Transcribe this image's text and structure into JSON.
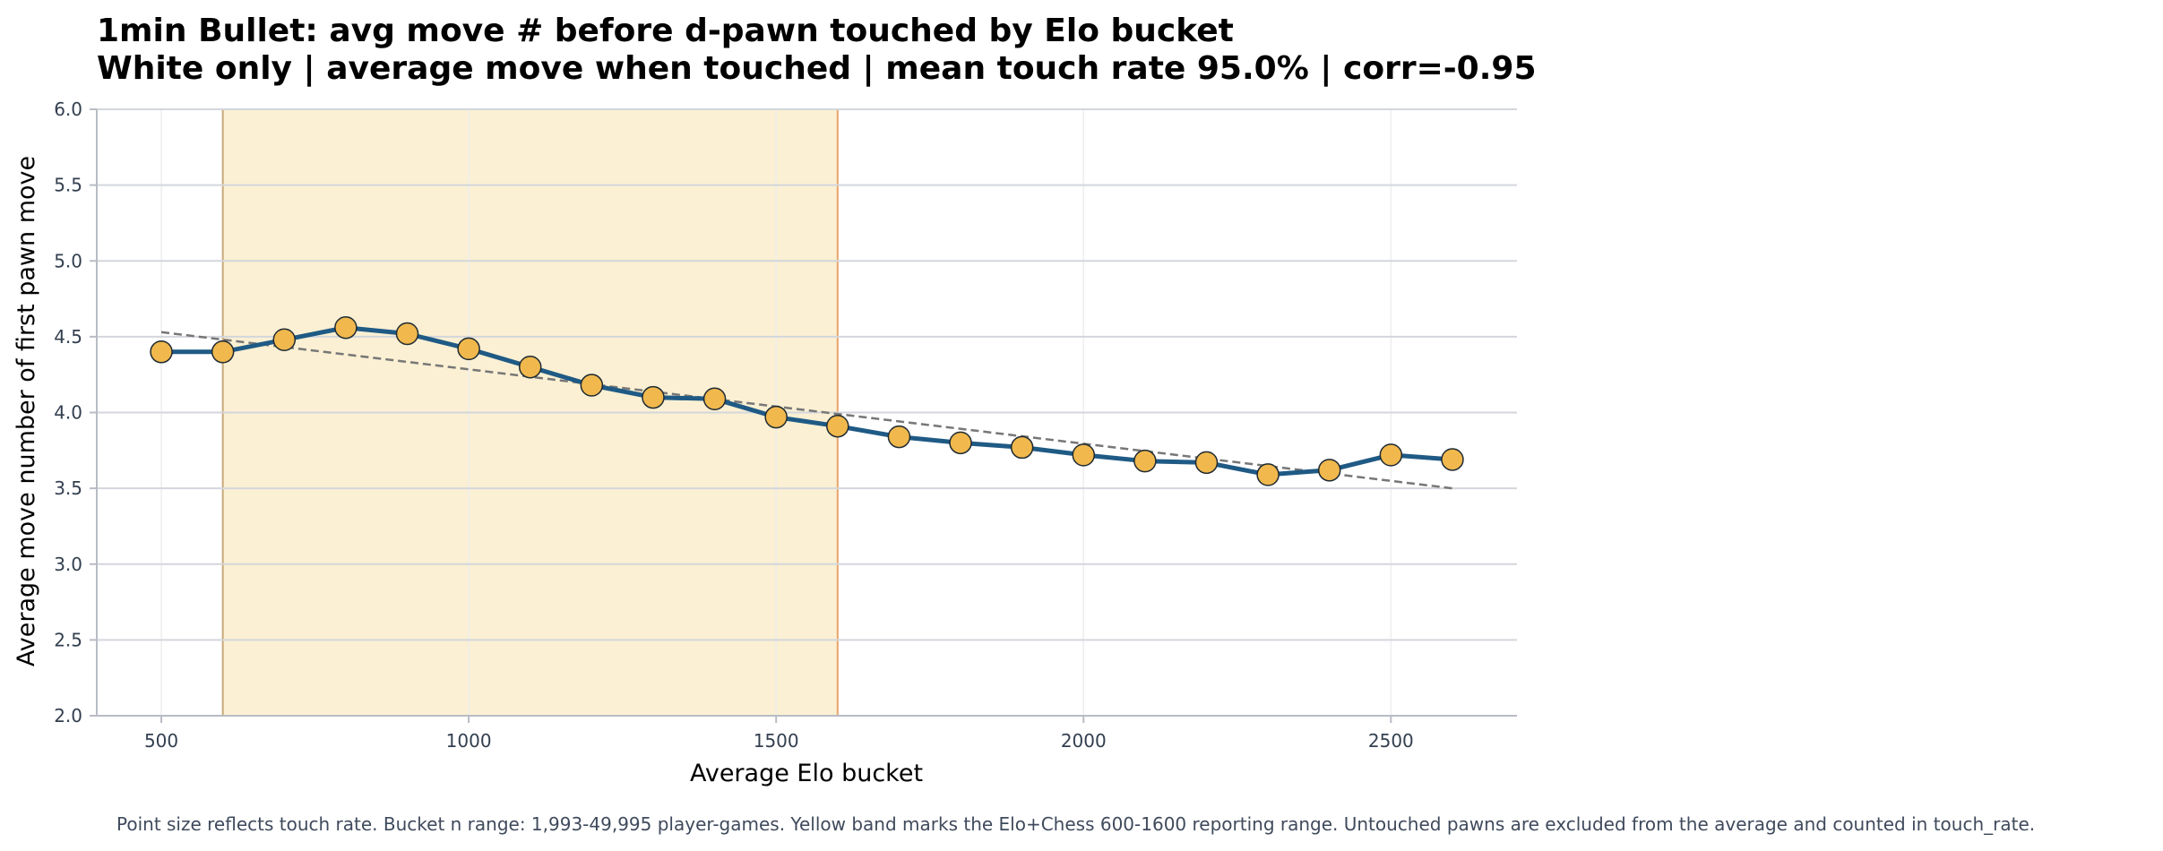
{
  "chart_data": {
    "type": "line",
    "title": "1min Bullet: avg move # before d-pawn touched by Elo bucket",
    "subtitle": "White only | average move when touched | mean touch rate 95.0% | corr=-0.95",
    "xlabel": "Average Elo bucket",
    "ylabel": "Average move number of first pawn move",
    "xlim": [
      395,
      2705
    ],
    "ylim": [
      2.0,
      6.0
    ],
    "x_ticks": [
      500,
      1000,
      1500,
      2000,
      2500
    ],
    "y_ticks": [
      2.0,
      2.5,
      3.0,
      3.5,
      4.0,
      4.5,
      5.0,
      5.5,
      6.0
    ],
    "grid": true,
    "highlight_band": {
      "x_start": 600,
      "x_end": 1600,
      "color": "#fbf0d3",
      "edge_left": "#c9a97a",
      "edge_right": "#e8a46a"
    },
    "series": [
      {
        "x": [
          500,
          600,
          700,
          800,
          900,
          1000,
          1100,
          1200,
          1300,
          1400,
          1500,
          1600,
          1700,
          1800,
          1900,
          2000,
          2100,
          2200,
          2300,
          2400,
          2500,
          2600
        ],
        "y": [
          4.4,
          4.4,
          4.48,
          4.56,
          4.52,
          4.42,
          4.3,
          4.18,
          4.1,
          4.09,
          3.97,
          3.91,
          3.84,
          3.8,
          3.77,
          3.72,
          3.68,
          3.67,
          3.59,
          3.62,
          3.72,
          3.69
        ],
        "line_color": "#1f5a85",
        "marker_color": "#f0b84d"
      }
    ],
    "trendline": {
      "x": [
        500,
        2600
      ],
      "y": [
        4.53,
        3.5
      ],
      "color": "#777777",
      "style": "dashed"
    }
  },
  "footnote": "Point size reflects touch rate. Bucket n range: 1,993-49,995 player-games. Yellow band marks the Elo+Chess 600-1600 reporting range. Untouched pawns are excluded from the average and counted in touch_rate."
}
